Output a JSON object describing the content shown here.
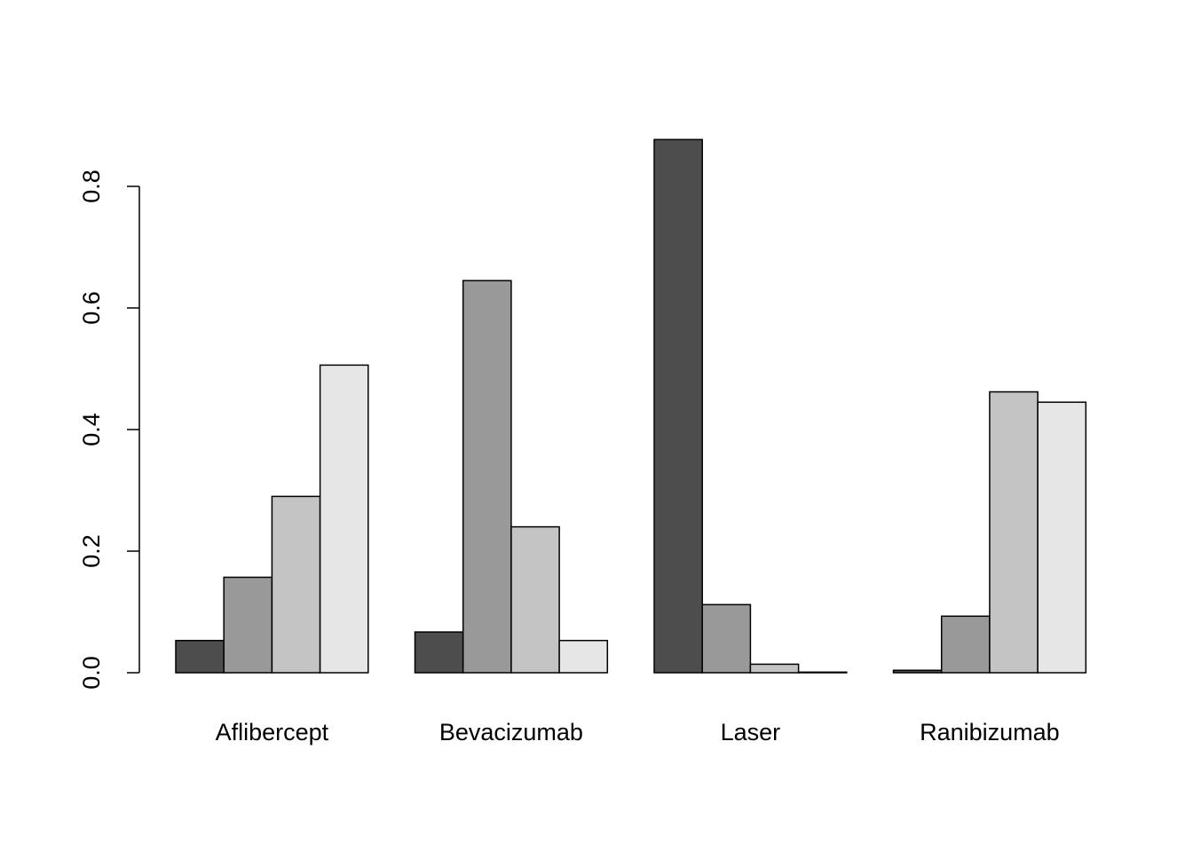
{
  "chart_data": {
    "type": "bar",
    "layout": "grouped",
    "categories": [
      "Aflibercept",
      "Bevacizumab",
      "Laser",
      "Ranibizumab"
    ],
    "series": [
      {
        "color": "#4d4d4d",
        "values": [
          0.053,
          0.067,
          0.877,
          0.004
        ]
      },
      {
        "color": "#999999",
        "values": [
          0.157,
          0.645,
          0.112,
          0.093
        ]
      },
      {
        "color": "#c4c4c4",
        "values": [
          0.29,
          0.24,
          0.014,
          0.462
        ]
      },
      {
        "color": "#e6e6e6",
        "values": [
          0.506,
          0.053,
          0.001,
          0.445
        ]
      }
    ],
    "title": "",
    "xlabel": "",
    "ylabel": "",
    "ylim": [
      0,
      0.8
    ],
    "yticks": [
      {
        "value": 0.0,
        "label": "0.0"
      },
      {
        "value": 0.2,
        "label": "0.2"
      },
      {
        "value": 0.4,
        "label": "0.4"
      },
      {
        "value": 0.6,
        "label": "0.6"
      },
      {
        "value": 0.8,
        "label": "0.8"
      }
    ],
    "grid": false,
    "legend": "none"
  }
}
